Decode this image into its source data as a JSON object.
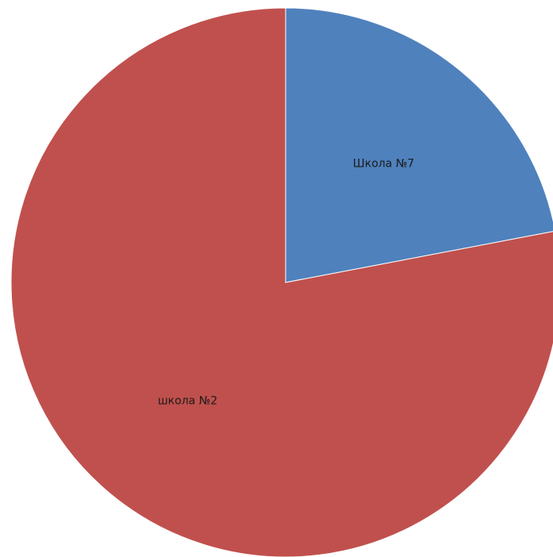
{
  "chart_data": {
    "type": "pie",
    "start_angle_deg": 0,
    "direction": "clockwise",
    "slices": [
      {
        "label": "Школа №7",
        "value": 22,
        "color": "#4f81bd"
      },
      {
        "label": "школа №2",
        "value": 78,
        "color": "#c0504d"
      }
    ]
  }
}
